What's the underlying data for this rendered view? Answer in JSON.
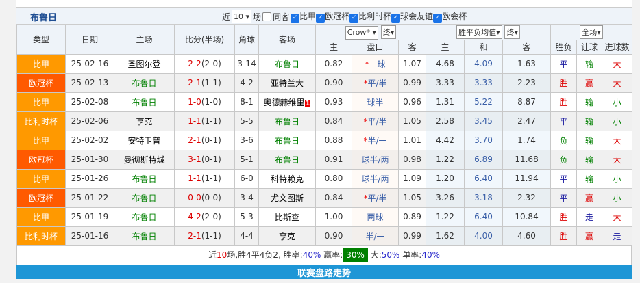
{
  "header": {
    "team": "布鲁日",
    "near_label": "近",
    "count": "10",
    "games_label": "场",
    "same_label": "同客",
    "filters": [
      {
        "label": "比甲",
        "checked": true
      },
      {
        "label": "欧冠杯",
        "checked": true
      },
      {
        "label": "比利时杯",
        "checked": true
      },
      {
        "label": "球会友谊",
        "checked": true
      },
      {
        "label": "欧会杯",
        "checked": true
      }
    ]
  },
  "columns": {
    "type": "类型",
    "date": "日期",
    "home": "主场",
    "score": "比分(半场)",
    "corner": "角球",
    "away": "客场",
    "company": "Crow*",
    "odds_stage": "终",
    "avg": "胜平负均值",
    "avg_stage": "终",
    "scope": "全场",
    "sub": [
      "主",
      "盘口",
      "客",
      "主",
      "和",
      "客",
      "胜负",
      "让球",
      "进球数"
    ]
  },
  "colors": {
    "league": "#ff9900",
    "cup": "#ff5a00",
    "win": "#dd0000",
    "team": "#008000"
  },
  "rows": [
    {
      "type": "比甲",
      "cls": "t1",
      "date": "25-02-16",
      "home": "圣图尔登",
      "hg": false,
      "ft": "2-2",
      "ht": "(2-0)",
      "corner": "3-14",
      "away": "布鲁日",
      "ag": true,
      "o1": "0.82",
      "star": "*",
      "line": "一球",
      "o2": "1.07",
      "a1": "4.68",
      "a2": "4.09",
      "a3": "1.63",
      "r": "平",
      "rc": "b",
      "h": "输",
      "hc": "g",
      "ou": "大",
      "oc": "r"
    },
    {
      "type": "欧冠杯",
      "cls": "t2",
      "date": "25-02-13",
      "home": "布鲁日",
      "hg": true,
      "ft": "2-1",
      "ht": "(1-1)",
      "corner": "4-2",
      "away": "亚特兰大",
      "ag": false,
      "o1": "0.90",
      "star": "*",
      "line": "平/半",
      "o2": "0.99",
      "a1": "3.33",
      "a2": "3.33",
      "a3": "2.23",
      "r": "胜",
      "rc": "r",
      "h": "赢",
      "hc": "r",
      "ou": "大",
      "oc": "r"
    },
    {
      "type": "比甲",
      "cls": "t1",
      "date": "25-02-08",
      "home": "布鲁日",
      "hg": true,
      "ft": "1-0",
      "ht": "(1-0)",
      "corner": "8-1",
      "away": "奥德赫维里",
      "ag": false,
      "card": "1",
      "o1": "0.93",
      "star": "",
      "line": "球半",
      "o2": "0.96",
      "a1": "1.31",
      "a2": "5.22",
      "a3": "8.87",
      "r": "胜",
      "rc": "r",
      "h": "输",
      "hc": "g",
      "ou": "小",
      "oc": "g"
    },
    {
      "type": "比利时杯",
      "cls": "t1",
      "date": "25-02-06",
      "home": "亨克",
      "hg": false,
      "ft": "1-1",
      "ht": "(1-1)",
      "corner": "5-5",
      "away": "布鲁日",
      "ag": true,
      "o1": "0.84",
      "star": "*",
      "line": "平/半",
      "o2": "1.05",
      "a1": "2.58",
      "a2": "3.45",
      "a3": "2.47",
      "r": "平",
      "rc": "b",
      "h": "输",
      "hc": "g",
      "ou": "小",
      "oc": "g"
    },
    {
      "type": "比甲",
      "cls": "t1",
      "date": "25-02-02",
      "home": "安特卫普",
      "hg": false,
      "ft": "2-1",
      "ht": "(0-1)",
      "corner": "3-6",
      "away": "布鲁日",
      "ag": true,
      "o1": "0.88",
      "star": "*",
      "line": "半/一",
      "o2": "1.01",
      "a1": "4.42",
      "a2": "3.70",
      "a3": "1.74",
      "r": "负",
      "rc": "g",
      "h": "输",
      "hc": "g",
      "ou": "大",
      "oc": "r"
    },
    {
      "type": "欧冠杯",
      "cls": "t2",
      "date": "25-01-30",
      "home": "曼彻斯特城",
      "hg": false,
      "ft": "3-1",
      "ht": "(0-1)",
      "corner": "5-1",
      "away": "布鲁日",
      "ag": true,
      "o1": "0.91",
      "star": "",
      "line": "球半/两",
      "o2": "0.98",
      "a1": "1.22",
      "a2": "6.89",
      "a3": "11.68",
      "r": "负",
      "rc": "g",
      "h": "输",
      "hc": "g",
      "ou": "大",
      "oc": "r"
    },
    {
      "type": "比甲",
      "cls": "t1",
      "date": "25-01-26",
      "home": "布鲁日",
      "hg": true,
      "ft": "1-1",
      "ht": "(1-1)",
      "corner": "6-0",
      "away": "科特赖克",
      "ag": false,
      "o1": "0.80",
      "star": "",
      "line": "球半/两",
      "o2": "1.09",
      "a1": "1.20",
      "a2": "6.40",
      "a3": "11.94",
      "r": "平",
      "rc": "b",
      "h": "输",
      "hc": "g",
      "ou": "小",
      "oc": "g"
    },
    {
      "type": "欧冠杯",
      "cls": "t2",
      "date": "25-01-22",
      "home": "布鲁日",
      "hg": true,
      "ft": "0-0",
      "ht": "(0-0)",
      "corner": "3-4",
      "away": "尤文图斯",
      "ag": false,
      "o1": "0.84",
      "star": "*",
      "line": "平/半",
      "o2": "1.05",
      "a1": "3.26",
      "a2": "3.18",
      "a3": "2.32",
      "r": "平",
      "rc": "b",
      "h": "赢",
      "hc": "r",
      "ou": "小",
      "oc": "g"
    },
    {
      "type": "比甲",
      "cls": "t1",
      "date": "25-01-19",
      "home": "布鲁日",
      "hg": true,
      "ft": "4-2",
      "ht": "(2-0)",
      "corner": "5-3",
      "away": "比斯查",
      "ag": false,
      "o1": "1.00",
      "star": "",
      "line": "两球",
      "o2": "0.89",
      "a1": "1.22",
      "a2": "6.40",
      "a3": "10.84",
      "r": "胜",
      "rc": "r",
      "h": "走",
      "hc": "b",
      "ou": "大",
      "oc": "r"
    },
    {
      "type": "比利时杯",
      "cls": "t1",
      "date": "25-01-16",
      "home": "布鲁日",
      "hg": true,
      "ft": "2-1",
      "ht": "(1-1)",
      "corner": "4-4",
      "away": "亨克",
      "ag": false,
      "o1": "0.90",
      "star": "",
      "line": "半/一",
      "o2": "0.99",
      "a1": "1.62",
      "a2": "4.00",
      "a3": "4.60",
      "r": "胜",
      "rc": "r",
      "h": "赢",
      "hc": "r",
      "ou": "走",
      "oc": "b"
    }
  ],
  "summary": {
    "p1": "近",
    "n": "10",
    "p2": "场,胜4平4负2, 胜率:",
    "win": "40%",
    "p3": " 赢率:",
    "cover": "30%",
    "p4": " 大:",
    "over": "50%",
    "p5": " 单率:",
    "odd": "40%"
  },
  "section_title": "联赛盘路走势"
}
